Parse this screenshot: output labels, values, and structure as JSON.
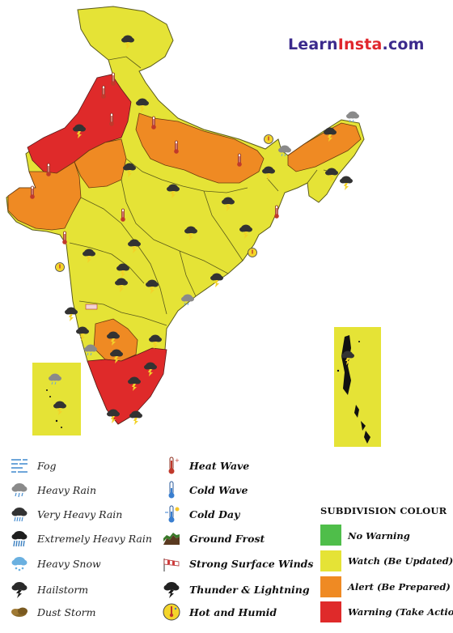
{
  "brand": {
    "part1": "Learn",
    "part2": "Insta",
    "part3": ".com"
  },
  "colors": {
    "no_warning": "#4fbe4a",
    "watch": "#e5e336",
    "alert": "#ef8a23",
    "warning": "#df2a2a"
  },
  "legend_icons": [
    {
      "label": "Fog",
      "icon": "fog-icon"
    },
    {
      "label": "Heavy Rain",
      "icon": "heavy-rain-icon"
    },
    {
      "label": "Very Heavy Rain",
      "icon": "very-heavy-rain-icon"
    },
    {
      "label": "Extremely Heavy Rain",
      "icon": "extremely-heavy-rain-icon"
    },
    {
      "label": "Heavy Snow",
      "icon": "heavy-snow-icon"
    },
    {
      "label": "Hailstorm",
      "icon": "hailstorm-icon"
    },
    {
      "label": "Dust Storm",
      "icon": "dust-storm-icon"
    },
    {
      "label": "Heat Wave",
      "icon": "heat-wave-icon"
    },
    {
      "label": "Cold Wave",
      "icon": "cold-wave-icon"
    },
    {
      "label": "Cold Day",
      "icon": "cold-day-icon"
    },
    {
      "label": "Ground Frost",
      "icon": "ground-frost-icon"
    },
    {
      "label": "Strong Surface Winds",
      "icon": "strong-winds-icon"
    },
    {
      "label": "Thunder & Lightning",
      "icon": "thunder-lightning-icon"
    },
    {
      "label": "Hot and Humid",
      "icon": "hot-humid-icon"
    }
  ],
  "subdivision": {
    "title": "SUBDIVISION COLOUR",
    "items": [
      {
        "label": "No Warning",
        "color": "#4fbe4a"
      },
      {
        "label": "Watch (Be Updated)",
        "color": "#e5e336"
      },
      {
        "label": "Alert (Be Prepared)",
        "color": "#ef8a23"
      },
      {
        "label": "Warning (Take Action)",
        "color": "#df2a2a"
      }
    ]
  }
}
